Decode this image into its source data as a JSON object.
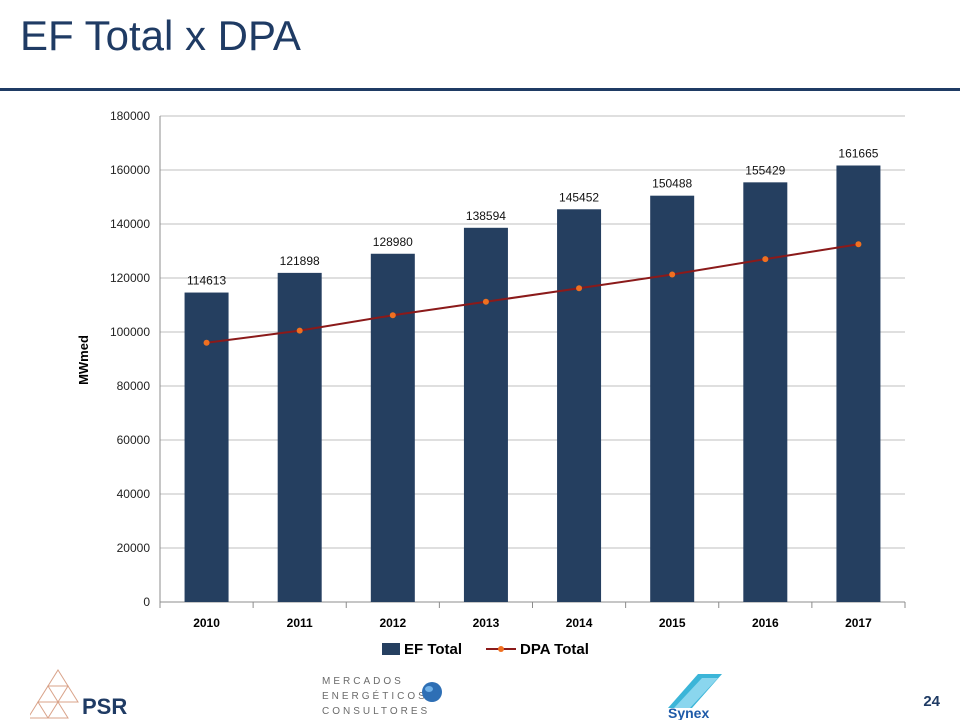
{
  "slide": {
    "title": "EF Total x DPA",
    "page_number": "24"
  },
  "logos": {
    "psr": "PSR",
    "mec_line1": "MERCADOS",
    "mec_line2": "ENERGÉTICOS",
    "mec_line3": "CONSULTORES",
    "synex": "Synex"
  },
  "colors": {
    "bar": "#253f60",
    "line": "#8b1a1a",
    "marker": "#f07020",
    "title": "#1f3b64"
  },
  "chart_data": {
    "type": "bar",
    "categories": [
      "2010",
      "2011",
      "2012",
      "2013",
      "2014",
      "2015",
      "2016",
      "2017"
    ],
    "series": [
      {
        "name": "EF Total",
        "type": "bar",
        "values": [
          114613,
          121898,
          128980,
          138594,
          145452,
          150488,
          155429,
          161665
        ]
      },
      {
        "name": "DPA Total",
        "type": "line",
        "values": [
          96000,
          100500,
          106200,
          111200,
          116200,
          121300,
          127000,
          132500
        ]
      }
    ],
    "ylabel": "MWmed",
    "ylim": [
      0,
      180000
    ],
    "yticks": [
      "0",
      "20000",
      "40000",
      "60000",
      "80000",
      "100000",
      "120000",
      "140000",
      "160000",
      "180000"
    ],
    "data_labels": [
      "114613",
      "121898",
      "128980",
      "138594",
      "145452",
      "150488",
      "155429",
      "161665"
    ],
    "grid": true,
    "legend": "bottom"
  }
}
